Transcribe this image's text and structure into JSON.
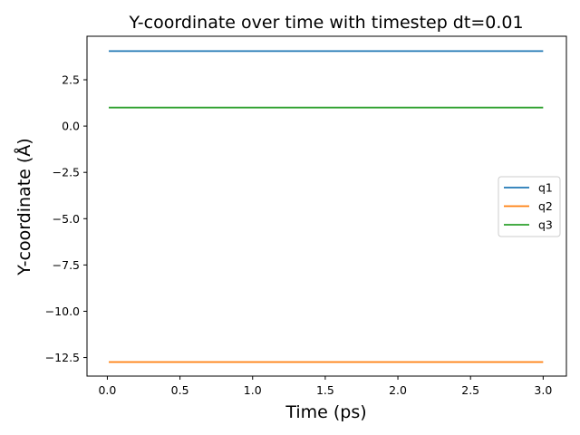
{
  "chart_data": {
    "type": "line",
    "title": "Y-coordinate over time with timestep dt=0.01",
    "xlabel": "Time (ps)",
    "ylabel": "Y-coordinate (Å)",
    "xlim": [
      -0.14,
      3.16
    ],
    "ylim": [
      -13.5,
      4.85
    ],
    "xticks": [
      0.0,
      0.5,
      1.0,
      1.5,
      2.0,
      2.5,
      3.0
    ],
    "xtick_labels": [
      "0.0",
      "0.5",
      "1.0",
      "1.5",
      "2.0",
      "2.5",
      "3.0"
    ],
    "yticks": [
      2.5,
      0.0,
      -2.5,
      -5.0,
      -7.5,
      -10.0,
      -12.5
    ],
    "ytick_labels": [
      "2.5",
      "0.0",
      "−2.5",
      "−5.0",
      "−7.5",
      "−10.0",
      "−12.5"
    ],
    "grid": false,
    "legend_position": "center-right",
    "series": [
      {
        "name": "q1",
        "color": "#1f77b4",
        "x": [
          0.01,
          3.0
        ],
        "y": [
          4.05,
          4.05
        ]
      },
      {
        "name": "q2",
        "color": "#ff7f0e",
        "x": [
          0.01,
          3.0
        ],
        "y": [
          -12.74,
          -12.74
        ]
      },
      {
        "name": "q3",
        "color": "#2ca02c",
        "x": [
          0.01,
          3.0
        ],
        "y": [
          1.0,
          1.0
        ]
      }
    ]
  }
}
